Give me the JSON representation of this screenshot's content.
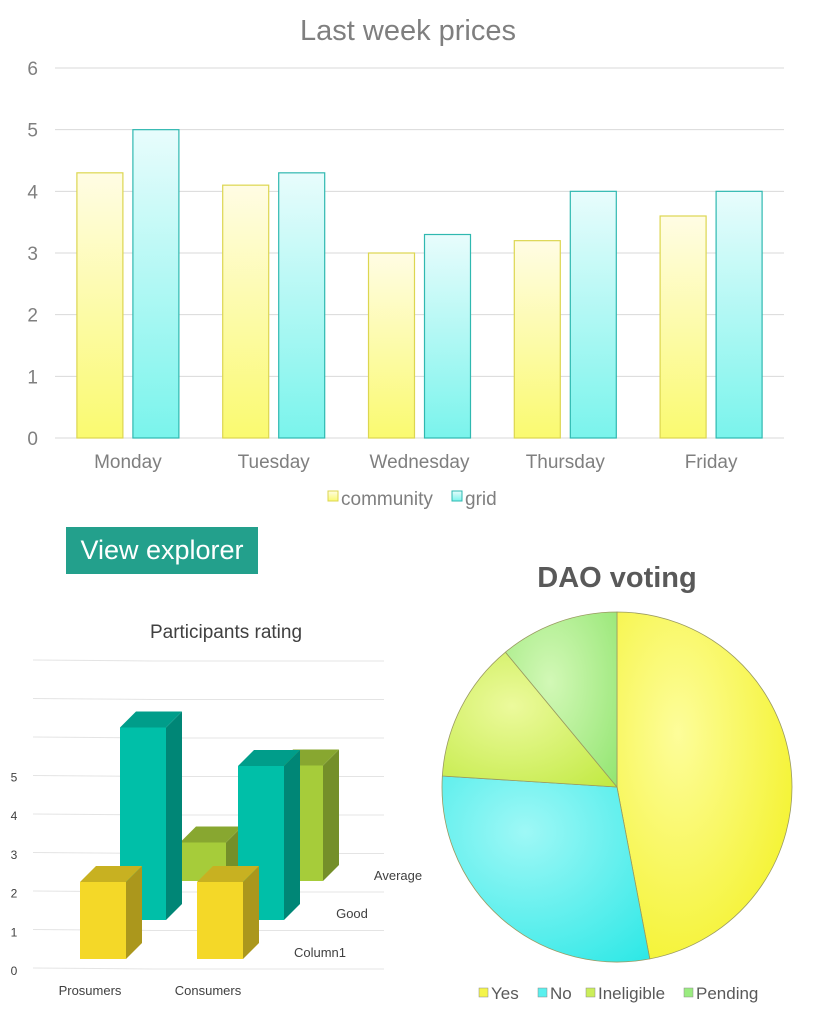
{
  "chart_data": [
    {
      "type": "bar",
      "title": "Last week prices",
      "categories": [
        "Monday",
        "Tuesday",
        "Wednesday",
        "Thursday",
        "Friday"
      ],
      "series": [
        {
          "name": "community",
          "values": [
            4.3,
            4.1,
            3.0,
            3.2,
            3.6
          ]
        },
        {
          "name": "grid",
          "values": [
            5.0,
            4.3,
            3.3,
            4.0,
            4.0
          ]
        }
      ],
      "ylim": [
        0,
        6
      ],
      "yticks": [
        "0",
        "1",
        "2",
        "3",
        "4",
        "5",
        "6"
      ],
      "grid": true,
      "legend": "bottom"
    },
    {
      "type": "bar",
      "subtype": "3d-column",
      "title": "Participants rating",
      "categories": [
        "Prosumers",
        "Consumers"
      ],
      "series": [
        {
          "name": "Column1",
          "values": [
            2,
            2
          ]
        },
        {
          "name": "Good",
          "values": [
            5,
            4
          ]
        },
        {
          "name": "Average",
          "values": [
            1,
            3
          ]
        }
      ],
      "ylim": [
        0,
        5
      ],
      "yticks": [
        "0",
        "1",
        "2",
        "3",
        "4",
        "5"
      ]
    },
    {
      "type": "pie",
      "title": "DAO voting",
      "labels": [
        "Yes",
        "No",
        "Ineligible",
        "Pending"
      ],
      "values": [
        47,
        29,
        13,
        11
      ],
      "legend": "bottom"
    }
  ],
  "button": {
    "label": "View explorer"
  },
  "colors": {
    "community_top": "#fffbe0",
    "community_bottom": "#fafa6e",
    "community_stroke": "#dcd650",
    "grid_top": "#e6fbfb",
    "grid_bottom": "#7af6ee",
    "grid_stroke": "#2fb8b0",
    "pie_yes": "#f4f44a",
    "pie_no": "#5af0ee",
    "pie_ineligible": "#cbee5a",
    "pie_pending": "#9aec80",
    "bar3d_column1": "#f4d828",
    "bar3d_good": "#00bfa8",
    "bar3d_average": "#a6cc3a",
    "button_bg": "#23a08c"
  }
}
